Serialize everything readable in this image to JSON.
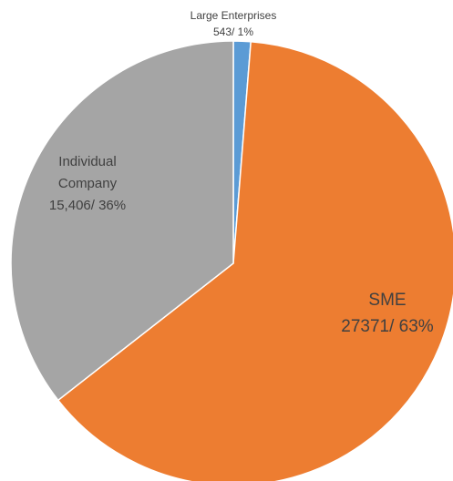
{
  "chart_data": {
    "type": "pie",
    "categories": [
      "Large Enterprises",
      "SME",
      "Individual Company"
    ],
    "values": [
      543,
      27371,
      15406
    ],
    "value_labels": [
      "543/ 1%",
      "27371/ 63%",
      "15,406/ 36%"
    ],
    "colors": [
      "#5b9bd5",
      "#ed7d31",
      "#a5a5a5"
    ]
  }
}
